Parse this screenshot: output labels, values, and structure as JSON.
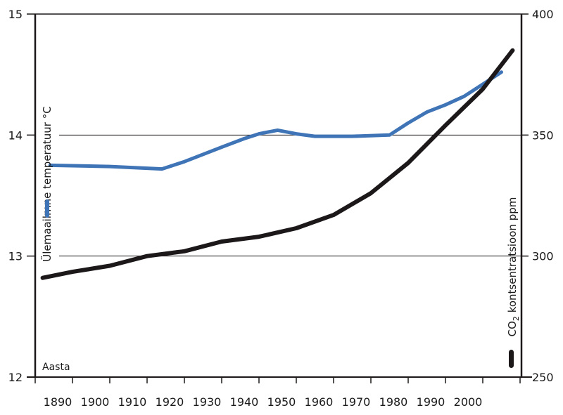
{
  "chart_data": {
    "type": "line",
    "xlabel": "Aasta",
    "x_ticks": [
      1890,
      1900,
      1910,
      1920,
      1930,
      1940,
      1950,
      1960,
      1970,
      1980,
      1990,
      2000
    ],
    "xlim": [
      1880,
      2010
    ],
    "left_axis": {
      "label": "Ülemaailmne temperatuur °C",
      "ylim": [
        12,
        15
      ],
      "ticks": [
        12,
        13,
        14,
        15
      ]
    },
    "right_axis": {
      "label_main": "CO",
      "label_sub": "2",
      "label_rest": " kontsentratsioon ppm",
      "ylim": [
        250,
        400
      ],
      "ticks": [
        250,
        300,
        350,
        400
      ]
    },
    "gridlines": [
      13,
      14
    ],
    "series": [
      {
        "axis": "left",
        "color": "#3f74b7",
        "points": [
          [
            1884,
            13.75
          ],
          [
            1900,
            13.74
          ],
          [
            1914,
            13.72
          ],
          [
            1920,
            13.78
          ],
          [
            1930,
            13.9
          ],
          [
            1936,
            13.97
          ],
          [
            1940,
            14.01
          ],
          [
            1945,
            14.04
          ],
          [
            1950,
            14.01
          ],
          [
            1955,
            13.99
          ],
          [
            1965,
            13.99
          ],
          [
            1975,
            14.0
          ],
          [
            1980,
            14.1
          ],
          [
            1985,
            14.19
          ],
          [
            1990,
            14.25
          ],
          [
            1995,
            14.32
          ],
          [
            2000,
            14.42
          ],
          [
            2005,
            14.52
          ]
        ]
      },
      {
        "axis": "right",
        "color": "#1c1819",
        "points": [
          [
            1882,
            291
          ],
          [
            1890,
            293.5
          ],
          [
            1900,
            296
          ],
          [
            1910,
            300
          ],
          [
            1920,
            302
          ],
          [
            1930,
            306
          ],
          [
            1940,
            308
          ],
          [
            1950,
            311.5
          ],
          [
            1960,
            317
          ],
          [
            1970,
            326
          ],
          [
            1980,
            338.5
          ],
          [
            1990,
            354
          ],
          [
            2000,
            369
          ],
          [
            2008,
            385
          ]
        ]
      }
    ]
  }
}
